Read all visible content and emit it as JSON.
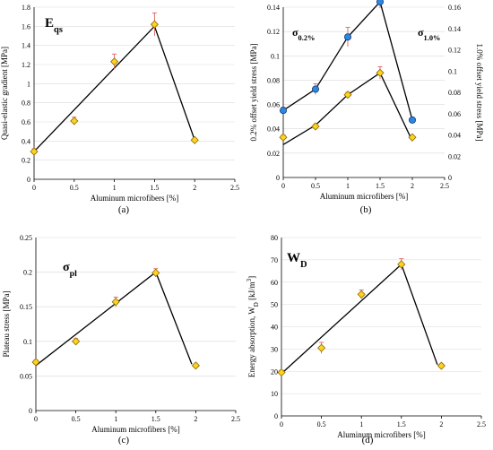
{
  "colors": {
    "marker_fill": "#FFD21F",
    "marker_stroke": "#8A6A00",
    "line": "#000000",
    "errorbar": "#E06060",
    "orange": "#B45F1E",
    "blue": "#1F2FA0",
    "blue_marker": "#2E86DE"
  },
  "chart_data": [
    {
      "id": "a",
      "type": "scatter",
      "panel_label": "(a)",
      "symbol_main": "E",
      "symbol_sub": "qs",
      "xlabel": "Aluminum microfibers [%]",
      "ylabel": "Quasi-elastic gradient [MPa]",
      "xlim": [
        0,
        2.5
      ],
      "ylim": [
        0,
        1.8
      ],
      "xticks": [
        "0",
        "0.5",
        "1",
        "1.5",
        "2",
        "2.5"
      ],
      "yticks": [
        "0",
        "0.2",
        "0.4",
        "0.6",
        "0.8",
        "1",
        "1.2",
        "1.4",
        "1.6",
        "1.8"
      ],
      "grid": "horizontal",
      "series": [
        {
          "x": [
            0,
            0.5,
            1,
            1.5,
            2
          ],
          "y": [
            0.29,
            0.61,
            1.23,
            1.62,
            0.41
          ],
          "err": [
            0.03,
            0.04,
            0.08,
            0.12,
            0.02
          ],
          "trend": [
            [
              0,
              0.29
            ],
            [
              1.5,
              1.6
            ],
            [
              2,
              0.41
            ]
          ]
        }
      ]
    },
    {
      "id": "b",
      "type": "scatter",
      "panel_label": "(b)",
      "symbol_main": "σ",
      "symbol_sub": "0.2%",
      "symbol2_main": "σ",
      "symbol2_sub": "1.0%",
      "xlabel": "Aluminum microfibers [%]",
      "ylabel": "0.2% offset yield stress [MPa]",
      "ylabel_right": "1.0% offset yield stress [MPa]",
      "xlim": [
        0,
        2.5
      ],
      "ylim": [
        0,
        0.14
      ],
      "ylim_right": [
        0,
        0.16
      ],
      "xticks": [
        "0",
        "0.5",
        "1",
        "1.5",
        "2",
        "2.5"
      ],
      "yticks": [
        "0",
        "0.02",
        "0.04",
        "0.06",
        "0.08",
        "0.1",
        "0.12",
        "0.14"
      ],
      "yticks_right": [
        "0",
        "0.02",
        "0.04",
        "0.06",
        "0.08",
        "0.1",
        "0.12",
        "0.14",
        "0.16"
      ],
      "grid": "horizontal",
      "series": [
        {
          "axis": "left",
          "x": [
            0,
            0.5,
            1,
            1.5,
            2
          ],
          "y": [
            0.033,
            0.042,
            0.068,
            0.086,
            0.033
          ],
          "err": [
            0.002,
            0.002,
            0.002,
            0.005,
            0.001
          ],
          "trend": [
            [
              0,
              0.027
            ],
            [
              0.5,
              0.043
            ],
            [
              1,
              0.068
            ],
            [
              1.5,
              0.086
            ],
            [
              2,
              0.03
            ]
          ]
        },
        {
          "axis": "right",
          "x": [
            0,
            0.5,
            1,
            1.5,
            2
          ],
          "y": [
            0.063,
            0.083,
            0.132,
            0.165,
            0.054
          ],
          "err": [
            0.003,
            0.005,
            0.009,
            0.006,
            0.002
          ],
          "trend": [
            [
              0,
              0.063
            ],
            [
              0.5,
              0.083
            ],
            [
              1,
              0.132
            ],
            [
              1.5,
              0.165
            ],
            [
              2,
              0.054
            ]
          ]
        }
      ]
    },
    {
      "id": "c",
      "type": "scatter",
      "panel_label": "(c)",
      "symbol_main": "σ",
      "symbol_sub": "pl",
      "xlabel": "Aluminum microfibers [%]",
      "ylabel": "Plateau stress [MPa]",
      "xlim": [
        0,
        2.5
      ],
      "ylim": [
        0,
        0.25
      ],
      "xticks": [
        "0",
        "0.5",
        "1",
        "1.5",
        "2",
        "2.5"
      ],
      "yticks": [
        "0",
        "0.05",
        "0.1",
        "0.15",
        "0.2",
        "0.25"
      ],
      "grid": "horizontal",
      "series": [
        {
          "x": [
            0,
            0.5,
            1,
            1.5,
            2
          ],
          "y": [
            0.07,
            0.1,
            0.157,
            0.199,
            0.065
          ],
          "err": [
            0.003,
            0.004,
            0.007,
            0.006,
            0.002
          ],
          "trend": [
            [
              0,
              0.065
            ],
            [
              1.5,
              0.2
            ],
            [
              1.95,
              0.067
            ]
          ]
        }
      ]
    },
    {
      "id": "d",
      "type": "scatter",
      "panel_label": "(d)",
      "symbol_main": "W",
      "symbol_sub": "D",
      "xlabel": "Aluminum microfibers [%]",
      "ylabel": "Energy absorption, W",
      "ylabel_sub": "D",
      "ylabel_tail": " [kJ/m",
      "ylabel_sup": "3",
      "ylabel_end": "]",
      "xlim": [
        0,
        2.5
      ],
      "ylim": [
        0,
        80
      ],
      "xticks": [
        "0",
        "0.5",
        "1",
        "1.5",
        "2",
        "2.5"
      ],
      "yticks": [
        "0",
        "10",
        "20",
        "30",
        "40",
        "50",
        "60",
        "70",
        "80"
      ],
      "grid": "horizontal",
      "series": [
        {
          "x": [
            0,
            0.5,
            1,
            1.5,
            2
          ],
          "y": [
            19.5,
            30.5,
            54.5,
            68,
            22.5
          ],
          "err": [
            1.0,
            2.5,
            2.0,
            2.5,
            0.8
          ],
          "trend": [
            [
              0,
              19
            ],
            [
              1.5,
              68
            ],
            [
              1.95,
              23
            ]
          ]
        }
      ]
    }
  ]
}
